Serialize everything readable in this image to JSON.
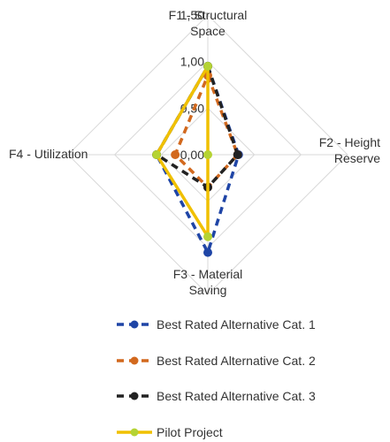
{
  "chart_data": {
    "type": "radar",
    "categories": [
      [
        "F1 - Structural",
        "Space"
      ],
      [
        "F2 - Height",
        "Reserve"
      ],
      [
        "F3 - Material",
        "Saving"
      ],
      [
        "F4 - Utilization"
      ]
    ],
    "range": [
      0,
      1.5
    ],
    "ticks": [
      "0,00",
      "0,50",
      "1,00",
      "1,50"
    ],
    "grid": true,
    "legend_position": "bottom",
    "series": [
      {
        "name": "Best Rated Alternative Cat. 1",
        "values": [
          0.95,
          0.33,
          1.05,
          0.55
        ],
        "color": "#1f45a6",
        "dash": "dashed",
        "marker": "circle"
      },
      {
        "name": "Best Rated Alternative Cat. 2",
        "values": [
          0.85,
          0.32,
          0.35,
          0.35
        ],
        "color": "#d2691e",
        "dash": "dashed",
        "marker": "circle"
      },
      {
        "name": "Best Rated Alternative Cat. 3",
        "values": [
          0.95,
          0.32,
          0.35,
          0.55
        ],
        "color": "#222222",
        "dash": "dashed",
        "marker": "circle"
      },
      {
        "name": "Pilot Project",
        "values": [
          0.95,
          0.0,
          0.88,
          0.55
        ],
        "color": "#f0c000",
        "dash": "solid",
        "marker": "circle",
        "marker_color": "#b5d334"
      }
    ]
  }
}
